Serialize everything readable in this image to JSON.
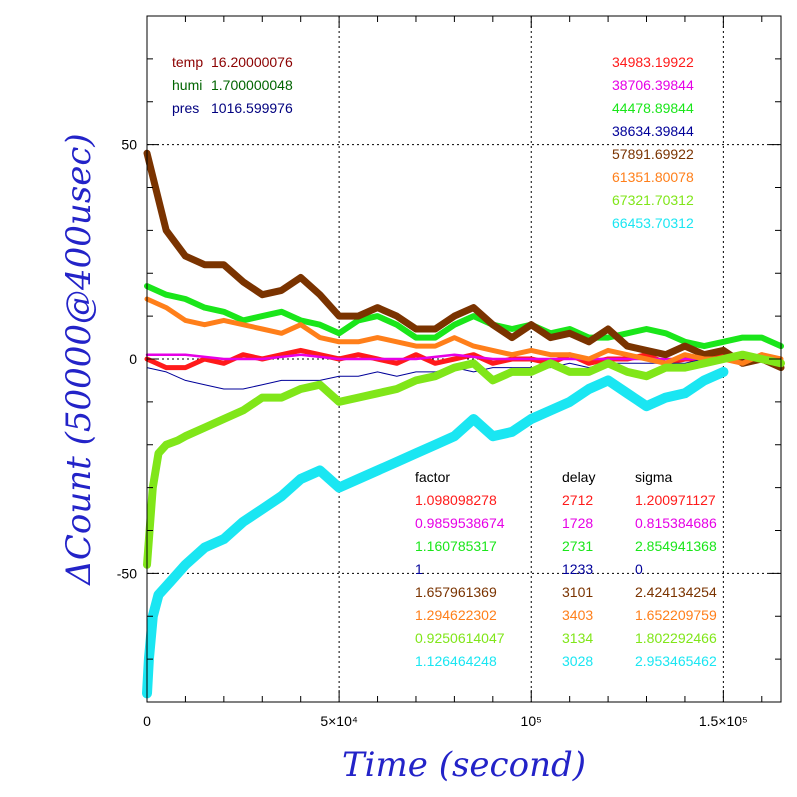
{
  "chart_data": {
    "type": "line",
    "xlabel": "Time (second)",
    "ylabel": "ΔCount (50000@400usec)",
    "xlim": [
      0,
      165000
    ],
    "ylim": [
      -80,
      80
    ],
    "grid": true,
    "x_ticks": [
      {
        "value": 0,
        "label": "0"
      },
      {
        "value": 50000,
        "label": "5×10⁴"
      },
      {
        "value": 100000,
        "label": "10⁵"
      },
      {
        "value": 150000,
        "label": "1.5×10⁵"
      }
    ],
    "y_ticks": [
      {
        "value": 50,
        "label": "50"
      },
      {
        "value": 0,
        "label": "0"
      },
      {
        "value": -50,
        "label": "-50"
      }
    ],
    "env": [
      {
        "label": "temp",
        "value": "16.20000076",
        "color": "#8b0000"
      },
      {
        "label": "humi",
        "value": "1.700000048",
        "color": "#006400"
      },
      {
        "label": "pres",
        "value": "1016.599976",
        "color": "#00007f"
      }
    ],
    "table_headers": [
      "factor",
      "delay",
      "sigma"
    ],
    "series": [
      {
        "color": "#ff1a1a",
        "width": 5,
        "mean": "34983.19922",
        "factor": "1.098098278",
        "delay": "2712",
        "sigma": "1.200971127",
        "x": [
          0,
          5000,
          10000,
          15000,
          20000,
          25000,
          30000,
          35000,
          40000,
          45000,
          50000,
          55000,
          60000,
          65000,
          70000,
          75000,
          80000,
          85000,
          90000,
          95000,
          100000,
          105000,
          110000,
          115000,
          120000,
          125000,
          130000,
          135000,
          140000,
          145000,
          150000,
          155000,
          160000,
          165000
        ],
        "y": [
          0,
          -2,
          -2,
          0,
          -1,
          1,
          0,
          1,
          2,
          1,
          0,
          1,
          0,
          -1,
          1,
          -1,
          0,
          1,
          -1,
          0,
          0,
          -1,
          1,
          -1,
          0,
          0,
          1,
          -1,
          0,
          0,
          1,
          -1,
          1,
          -1
        ]
      },
      {
        "color": "#e600e6",
        "width": 2.5,
        "mean": "38706.39844",
        "factor": "0.9859538674",
        "delay": "1728",
        "sigma": "0.815384686",
        "x": [
          0,
          10000,
          20000,
          30000,
          40000,
          50000,
          60000,
          70000,
          80000,
          90000,
          100000,
          110000,
          120000,
          130000,
          140000,
          150000,
          160000,
          165000
        ],
        "y": [
          1,
          1,
          0,
          0,
          1,
          0,
          0,
          0,
          1,
          0,
          0,
          0,
          0,
          0,
          0,
          0,
          0,
          0
        ]
      },
      {
        "color": "#1ae61a",
        "width": 6,
        "mean": "44478.89844",
        "factor": "1.160785317",
        "delay": "2731",
        "sigma": "2.854941368",
        "x": [
          0,
          5000,
          10000,
          15000,
          20000,
          25000,
          30000,
          35000,
          40000,
          45000,
          50000,
          55000,
          60000,
          65000,
          70000,
          75000,
          80000,
          85000,
          90000,
          95000,
          100000,
          105000,
          110000,
          115000,
          120000,
          125000,
          130000,
          135000,
          140000,
          145000,
          150000,
          155000,
          160000,
          165000
        ],
        "y": [
          17,
          15,
          14,
          12,
          11,
          9,
          10,
          11,
          9,
          8,
          6,
          9,
          10,
          8,
          5,
          5,
          8,
          10,
          8,
          7,
          8,
          6,
          7,
          5,
          5,
          6,
          7,
          6,
          4,
          3,
          4,
          5,
          5,
          3
        ]
      },
      {
        "color": "#000099",
        "width": 1,
        "mean": "38634.39844",
        "factor": "1",
        "delay": "1233",
        "sigma": "0",
        "x": [
          0,
          5000,
          10000,
          15000,
          20000,
          25000,
          30000,
          35000,
          40000,
          45000,
          50000,
          55000,
          60000,
          65000,
          70000,
          75000,
          80000,
          85000,
          90000,
          95000,
          100000,
          105000,
          110000,
          115000,
          120000,
          125000,
          130000,
          135000,
          140000,
          145000,
          150000,
          155000,
          160000,
          165000
        ],
        "y": [
          -2,
          -3,
          -5,
          -6,
          -7,
          -7,
          -6,
          -5,
          -5,
          -5,
          -4,
          -4,
          -3,
          -4,
          -3,
          -3,
          -2,
          -3,
          -2,
          -2,
          -2,
          -2,
          -1,
          -2,
          -1,
          -1,
          -1,
          -1,
          -1,
          0,
          0,
          0,
          0,
          0
        ]
      },
      {
        "color": "#7a3300",
        "width": 7,
        "mean": "57891.69922",
        "factor": "1.657961369",
        "delay": "3101",
        "sigma": "2.424134254",
        "x": [
          0,
          5000,
          10000,
          15000,
          20000,
          25000,
          30000,
          35000,
          40000,
          45000,
          50000,
          55000,
          60000,
          65000,
          70000,
          75000,
          80000,
          85000,
          90000,
          95000,
          100000,
          105000,
          110000,
          115000,
          120000,
          125000,
          130000,
          135000,
          140000,
          145000,
          150000,
          155000,
          160000,
          165000
        ],
        "y": [
          48,
          30,
          24,
          22,
          22,
          18,
          15,
          16,
          19,
          15,
          10,
          10,
          12,
          10,
          7,
          7,
          10,
          12,
          8,
          5,
          8,
          5,
          6,
          4,
          7,
          3,
          2,
          1,
          3,
          1,
          2,
          -1,
          0,
          -2
        ]
      },
      {
        "color": "#ff7f1a",
        "width": 5,
        "mean": "61351.80078",
        "factor": "1.294622302",
        "delay": "3403",
        "sigma": "1.652209759",
        "x": [
          0,
          5000,
          10000,
          15000,
          20000,
          25000,
          30000,
          35000,
          40000,
          45000,
          50000,
          55000,
          60000,
          65000,
          70000,
          75000,
          80000,
          85000,
          90000,
          95000,
          100000,
          105000,
          110000,
          115000,
          120000,
          125000,
          130000,
          135000,
          140000,
          145000,
          150000,
          155000,
          160000,
          165000
        ],
        "y": [
          14,
          12,
          9,
          8,
          9,
          8,
          7,
          6,
          8,
          5,
          4,
          4,
          5,
          4,
          3,
          3,
          5,
          3,
          2,
          1,
          2,
          1,
          1,
          0,
          2,
          1,
          0,
          -1,
          1,
          0,
          0,
          -1,
          1,
          0
        ]
      },
      {
        "color": "#80e619",
        "width": 8,
        "mean": "67321.70312",
        "factor": "0.9250614047",
        "delay": "3134",
        "sigma": "1.802292466",
        "x": [
          0,
          1500,
          3000,
          5000,
          8000,
          10000,
          15000,
          20000,
          25000,
          30000,
          35000,
          40000,
          45000,
          50000,
          55000,
          60000,
          65000,
          70000,
          75000,
          80000,
          85000,
          90000,
          95000,
          100000,
          105000,
          110000,
          115000,
          120000,
          125000,
          130000,
          135000,
          140000,
          145000,
          150000,
          155000,
          160000,
          165000
        ],
        "y": [
          -48,
          -30,
          -22,
          -20,
          -19,
          -18,
          -16,
          -14,
          -12,
          -9,
          -9,
          -7,
          -6,
          -10,
          -9,
          -8,
          -7,
          -5,
          -4,
          -2,
          -1,
          -5,
          -3,
          -3,
          -1,
          -3,
          -3,
          -1,
          -3,
          -4,
          -2,
          -2,
          -1,
          0,
          1,
          0,
          -1
        ]
      },
      {
        "color": "#1ae6f2",
        "width": 10,
        "mean": "66453.70312",
        "factor": "1.126464248",
        "delay": "3028",
        "sigma": "2.953465462",
        "x": [
          0,
          500,
          1500,
          3000,
          6000,
          10000,
          15000,
          20000,
          25000,
          30000,
          35000,
          40000,
          45000,
          50000,
          55000,
          60000,
          65000,
          70000,
          75000,
          80000,
          85000,
          90000,
          95000,
          100000,
          105000,
          110000,
          115000,
          120000,
          125000,
          130000,
          135000,
          140000,
          145000,
          150000
        ],
        "y": [
          -78,
          -70,
          -60,
          -55,
          -52,
          -48,
          -44,
          -42,
          -38,
          -35,
          -32,
          -28,
          -26,
          -30,
          -28,
          -26,
          -24,
          -22,
          -20,
          -18,
          -14,
          -18,
          -17,
          -14,
          -12,
          -10,
          -7,
          -5,
          -8,
          -11,
          -9,
          -8,
          -5,
          -3
        ]
      }
    ]
  }
}
